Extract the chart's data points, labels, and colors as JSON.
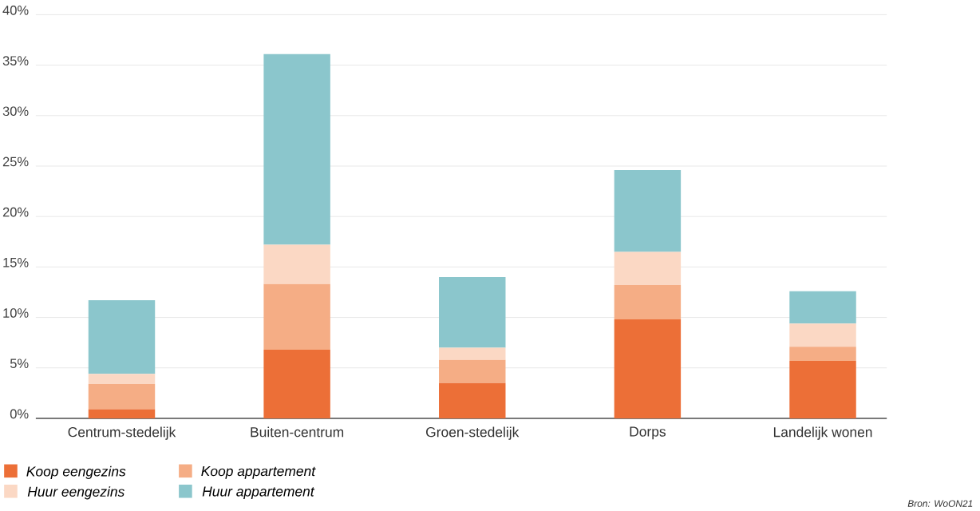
{
  "chart_data": {
    "type": "bar",
    "stacked": true,
    "categories": [
      "Centrum-stedelijk",
      "Buiten-centrum",
      "Groen-stedelijk",
      "Dorps",
      "Landelijk wonen"
    ],
    "series": [
      {
        "name": "Koop eengezins",
        "color": "#ec6f37",
        "values": [
          0.9,
          6.8,
          3.5,
          9.8,
          5.7
        ]
      },
      {
        "name": "Koop appartement",
        "color": "#f5ad85",
        "values": [
          2.5,
          6.5,
          2.3,
          3.4,
          1.4
        ]
      },
      {
        "name": "Huur eengezins",
        "color": "#fbd8c4",
        "values": [
          1.0,
          3.9,
          1.2,
          3.3,
          2.3
        ]
      },
      {
        "name": "Huur appartement",
        "color": "#8bc6cc",
        "values": [
          7.3,
          18.9,
          7.0,
          8.1,
          3.2
        ]
      }
    ],
    "ylim": [
      0,
      40
    ],
    "yticks": [
      {
        "value": 0,
        "label": "0%"
      },
      {
        "value": 5,
        "label": "5%"
      },
      {
        "value": 10,
        "label": "10%"
      },
      {
        "value": 15,
        "label": "15%"
      },
      {
        "value": 20,
        "label": "20%"
      },
      {
        "value": 25,
        "label": "25%"
      },
      {
        "value": 30,
        "label": "30%"
      },
      {
        "value": 35,
        "label": "35%"
      },
      {
        "value": 40,
        "label": "40%"
      }
    ],
    "grid": "y",
    "legend": "bottom left",
    "annotations": [
      "Bron: WoON21"
    ]
  }
}
